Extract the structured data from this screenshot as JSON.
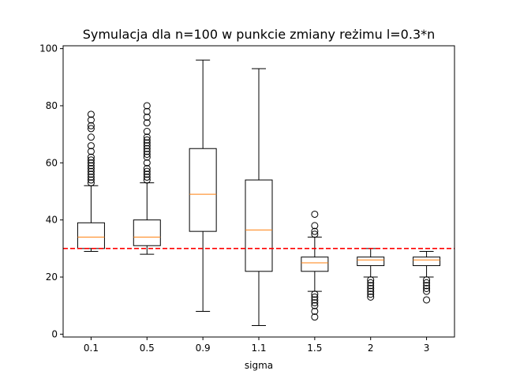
{
  "chart_data": {
    "type": "boxplot",
    "title": "Symulacja dla n=100 w punkcie zmiany reżimu l=0.3*n",
    "xlabel": "sigma",
    "ylabel": "",
    "ylim": [
      -1,
      101
    ],
    "yticks": [
      0,
      20,
      40,
      60,
      80,
      100
    ],
    "grid": false,
    "legend": "none",
    "categories": [
      "0.1",
      "0.5",
      "0.9",
      "1.1",
      "1.5",
      "2",
      "3"
    ],
    "boxes": [
      {
        "label": "0.1",
        "whislo": 29,
        "q1": 30,
        "med": 34,
        "q3": 39,
        "whishi": 52,
        "fliers": [
          53,
          54,
          55,
          56,
          57,
          58,
          59,
          60,
          61,
          62,
          64,
          66,
          69,
          72,
          73,
          75,
          77
        ]
      },
      {
        "label": "0.5",
        "whislo": 28,
        "q1": 31,
        "med": 34,
        "q3": 40,
        "whishi": 53,
        "fliers": [
          54,
          55,
          56,
          57,
          58,
          60,
          62,
          63,
          64,
          65,
          66,
          67,
          68,
          69,
          71,
          74,
          76,
          78,
          80
        ]
      },
      {
        "label": "0.9",
        "whislo": 8,
        "q1": 36,
        "med": 49,
        "q3": 65,
        "whishi": 96,
        "fliers": []
      },
      {
        "label": "1.1",
        "whislo": 3,
        "q1": 22,
        "med": 36.5,
        "q3": 54,
        "whishi": 93,
        "fliers": []
      },
      {
        "label": "1.5",
        "whislo": 15,
        "q1": 22,
        "med": 25,
        "q3": 27,
        "whishi": 34,
        "fliers": [
          35,
          36,
          38,
          42,
          6,
          8,
          10,
          11,
          12,
          13,
          14
        ]
      },
      {
        "label": "2",
        "whislo": 20,
        "q1": 24,
        "med": 26,
        "q3": 27,
        "whishi": 30,
        "fliers": [
          13,
          14,
          15,
          16,
          17,
          18,
          19
        ]
      },
      {
        "label": "3",
        "whislo": 20,
        "q1": 24,
        "med": 26,
        "q3": 27,
        "whishi": 29,
        "fliers": [
          12,
          15,
          16,
          17,
          18,
          19
        ]
      }
    ],
    "reference_line": {
      "y": 30,
      "color": "#ff0000",
      "style": "dashed"
    },
    "median_color": "#ff7f0e",
    "box_color": "#000000"
  }
}
